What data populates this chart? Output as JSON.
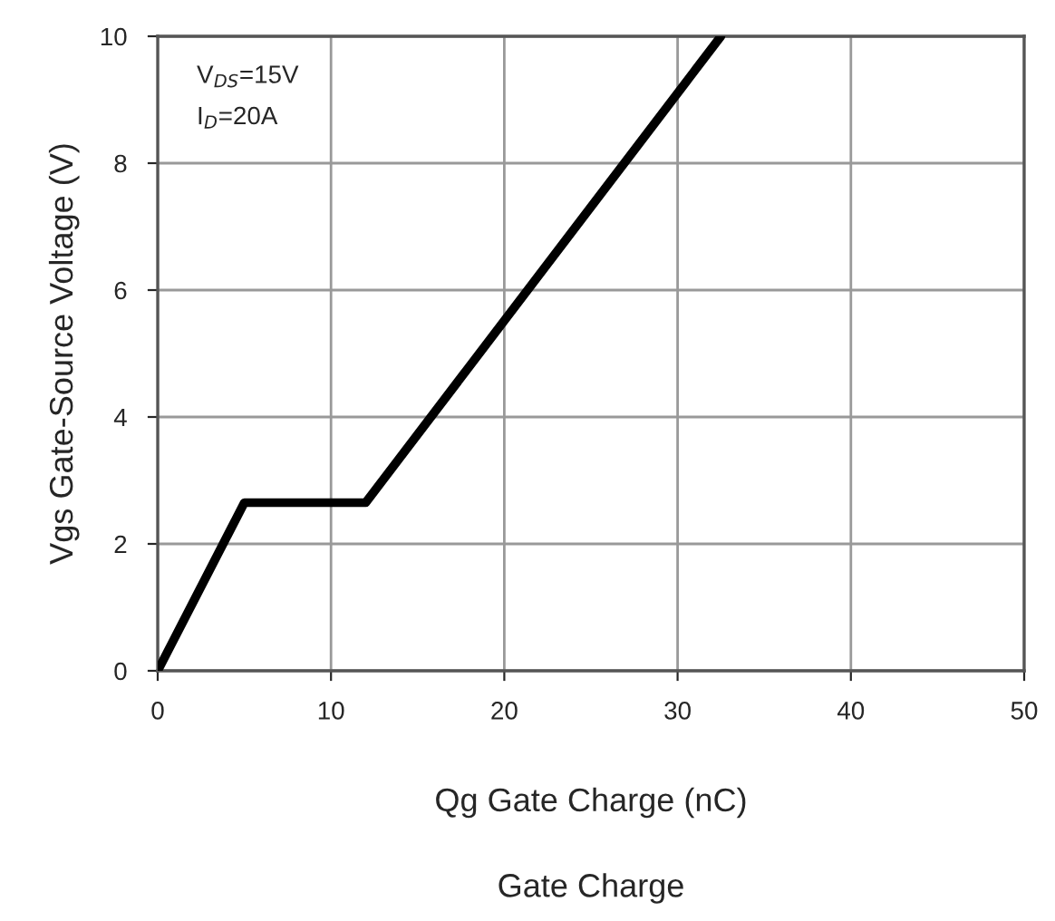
{
  "chart_data": {
    "type": "line",
    "title": "Gate Charge",
    "xlabel": "Qg Gate Charge (nC)",
    "ylabel": "Vgs Gate-Source Voltage (V)",
    "x": [
      0,
      5,
      12,
      32.5
    ],
    "series": [
      {
        "color": "#000000",
        "values": [
          0,
          2.65,
          2.65,
          10
        ]
      }
    ],
    "xlim": [
      0,
      50
    ],
    "xticks": [
      0,
      10,
      20,
      30,
      40,
      50
    ],
    "ylim": [
      0,
      10
    ],
    "yticks": [
      0,
      2,
      4,
      6,
      8,
      10
    ],
    "grid": true,
    "legend": false,
    "marker": "none",
    "line_style": "solid",
    "annotations": [
      "V$_{DS}$=15V",
      "I$_{D}$=20A"
    ]
  }
}
